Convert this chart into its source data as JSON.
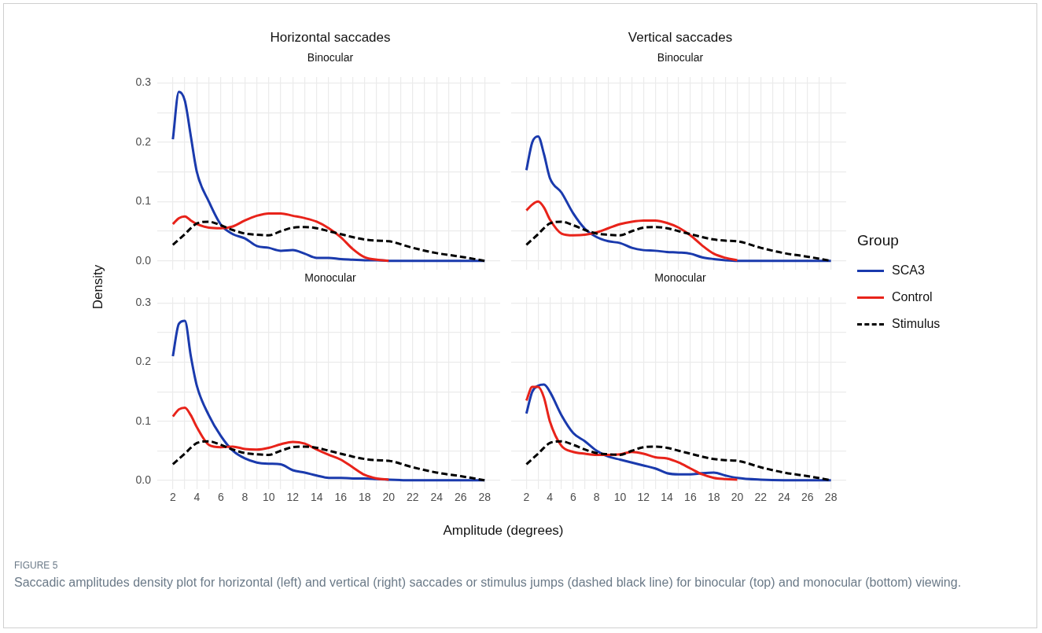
{
  "chart_data": [
    {
      "type": "line",
      "title": "Horizontal saccades",
      "subtitle": "Binocular",
      "ylabel": "Density",
      "x": [
        2,
        2.5,
        3,
        3.5,
        4,
        5,
        6,
        7,
        8,
        9,
        10,
        11,
        12,
        13,
        14,
        15,
        16,
        17,
        18,
        19,
        20,
        22,
        24,
        26,
        28
      ],
      "xlim": [
        0.7,
        29.3
      ],
      "ylim": [
        -0.015,
        0.31
      ],
      "xticks": [
        2,
        {
          "value": 3,
          "label": null
        },
        4,
        {
          "value": 5,
          "label": null
        },
        6,
        {
          "value": 7,
          "label": null
        },
        8,
        {
          "value": 9,
          "label": null
        },
        10,
        {
          "value": 11,
          "label": null
        },
        12,
        {
          "value": 13,
          "label": null
        },
        14,
        {
          "value": 15,
          "label": null
        },
        16,
        {
          "value": 17,
          "label": null
        },
        18,
        {
          "value": 19,
          "label": null
        },
        20,
        {
          "value": 21,
          "label": null
        },
        22,
        {
          "value": 23,
          "label": null
        },
        24,
        {
          "value": 25,
          "label": null
        },
        26,
        {
          "value": 27,
          "label": null
        },
        28
      ],
      "yticks": [
        {
          "value": 0,
          "label": "0.0"
        },
        {
          "value": 0.05,
          "label": null
        },
        {
          "value": 0.1,
          "label": "0.1"
        },
        {
          "value": 0.15,
          "label": null
        },
        {
          "value": 0.2,
          "label": "0.2"
        },
        {
          "value": 0.25,
          "label": null
        },
        {
          "value": 0.3,
          "label": "0.3"
        }
      ],
      "grid": true,
      "tick_labels": "y",
      "marker": "none",
      "series": [
        {
          "color": "#1a3aad",
          "line_style": "solid",
          "values": [
            0.205,
            0.285,
            0.27,
            0.21,
            0.15,
            0.1,
            0.061,
            0.045,
            0.038,
            0.025,
            0.022,
            0.017,
            0.018,
            0.012,
            0.005,
            0.005,
            0.003,
            0.002,
            0.001,
            0.001,
            0,
            0,
            0,
            0,
            0
          ]
        },
        {
          "color": "#e8231a",
          "line_style": "solid",
          "values": [
            0.062,
            0.072,
            0.075,
            0.068,
            0.062,
            0.056,
            0.055,
            0.058,
            0.068,
            0.076,
            0.08,
            0.08,
            0.076,
            0.072,
            0.066,
            0.055,
            0.04,
            0.02,
            0.006,
            0.002,
            0,
            null,
            null,
            null,
            null
          ]
        },
        {
          "color": "#000000",
          "line_style": "dashed",
          "values": [
            0.027,
            0.036,
            0.045,
            0.055,
            0.063,
            0.066,
            0.06,
            0.052,
            0.046,
            0.044,
            0.043,
            0.05,
            0.056,
            0.057,
            0.055,
            0.05,
            0.045,
            0.04,
            0.036,
            0.034,
            0.033,
            0.022,
            0.013,
            0.007,
            0
          ]
        }
      ]
    },
    {
      "type": "line",
      "title": "Vertical saccades",
      "subtitle": "Binocular",
      "legend_title": "Group",
      "legend": "right",
      "x": [
        2,
        2.5,
        3,
        3.5,
        4,
        5,
        6,
        7,
        8,
        9,
        10,
        11,
        12,
        13,
        14,
        15,
        16,
        17,
        18,
        19,
        20,
        22,
        24,
        26,
        28
      ],
      "xlim": [
        0.7,
        29.3
      ],
      "ylim": [
        -0.015,
        0.31
      ],
      "xticks": [
        2,
        3,
        4,
        5,
        6,
        7,
        8,
        9,
        10,
        11,
        12,
        13,
        14,
        15,
        16,
        17,
        18,
        19,
        20,
        21,
        22,
        23,
        24,
        25,
        26,
        27,
        28
      ],
      "yticks": [
        0,
        0.05,
        0.1,
        0.15,
        0.2,
        0.25,
        0.3
      ],
      "grid": true,
      "tick_labels": false,
      "marker": "none",
      "series": [
        {
          "name": "SCA3",
          "color": "#1a3aad",
          "line_style": "solid",
          "values": [
            0.153,
            0.2,
            0.21,
            0.18,
            0.14,
            0.115,
            0.08,
            0.054,
            0.04,
            0.033,
            0.03,
            0.022,
            0.018,
            0.017,
            0.015,
            0.014,
            0.012,
            0.006,
            0.003,
            0.001,
            0,
            0,
            0,
            0,
            0
          ]
        },
        {
          "name": "Control",
          "color": "#e8231a",
          "line_style": "solid",
          "values": [
            0.085,
            0.095,
            0.1,
            0.09,
            0.07,
            0.046,
            0.043,
            0.044,
            0.048,
            0.055,
            0.062,
            0.066,
            0.068,
            0.068,
            0.064,
            0.056,
            0.043,
            0.026,
            0.012,
            0.005,
            0.001,
            null,
            null,
            null,
            null
          ]
        },
        {
          "name": "Stimulus",
          "color": "#000000",
          "line_style": "dashed",
          "values": [
            0.027,
            0.036,
            0.045,
            0.055,
            0.063,
            0.066,
            0.06,
            0.052,
            0.046,
            0.044,
            0.043,
            0.05,
            0.056,
            0.057,
            0.055,
            0.05,
            0.045,
            0.04,
            0.036,
            0.034,
            0.033,
            0.022,
            0.013,
            0.007,
            0
          ]
        }
      ]
    },
    {
      "type": "line",
      "subtitle": "Monocular",
      "xlabel": "Amplitude (degrees)",
      "x": [
        2,
        2.5,
        3,
        3.5,
        4,
        5,
        6,
        7,
        8,
        9,
        10,
        11,
        12,
        13,
        14,
        15,
        16,
        17,
        18,
        19,
        20,
        22,
        24,
        26,
        28
      ],
      "xlim": [
        0.7,
        29.3
      ],
      "ylim": [
        -0.015,
        0.31
      ],
      "xticks": [
        2,
        {
          "value": 3,
          "label": null
        },
        4,
        {
          "value": 5,
          "label": null
        },
        6,
        {
          "value": 7,
          "label": null
        },
        8,
        {
          "value": 9,
          "label": null
        },
        10,
        {
          "value": 11,
          "label": null
        },
        12,
        {
          "value": 13,
          "label": null
        },
        14,
        {
          "value": 15,
          "label": null
        },
        16,
        {
          "value": 17,
          "label": null
        },
        18,
        {
          "value": 19,
          "label": null
        },
        20,
        {
          "value": 21,
          "label": null
        },
        22,
        {
          "value": 23,
          "label": null
        },
        24,
        {
          "value": 25,
          "label": null
        },
        26,
        {
          "value": 27,
          "label": null
        },
        28
      ],
      "yticks": [
        {
          "value": 0,
          "label": "0.0"
        },
        {
          "value": 0.05,
          "label": null
        },
        {
          "value": 0.1,
          "label": "0.1"
        },
        {
          "value": 0.15,
          "label": null
        },
        {
          "value": 0.2,
          "label": "0.2"
        },
        {
          "value": 0.25,
          "label": null
        },
        {
          "value": 0.3,
          "label": "0.3"
        }
      ],
      "grid": true,
      "marker": "none",
      "series": [
        {
          "color": "#1a3aad",
          "line_style": "solid",
          "values": [
            0.21,
            0.265,
            0.27,
            0.21,
            0.16,
            0.11,
            0.075,
            0.05,
            0.037,
            0.03,
            0.028,
            0.027,
            0.017,
            0.013,
            0.008,
            0.004,
            0.004,
            0.003,
            0.003,
            0.002,
            0.001,
            0,
            0,
            0,
            0
          ]
        },
        {
          "color": "#e8231a",
          "line_style": "solid",
          "values": [
            0.108,
            0.12,
            0.123,
            0.11,
            0.09,
            0.06,
            0.056,
            0.057,
            0.053,
            0.052,
            0.055,
            0.061,
            0.065,
            0.062,
            0.052,
            0.043,
            0.035,
            0.022,
            0.009,
            0.003,
            0.001,
            null,
            null,
            null,
            null
          ]
        },
        {
          "color": "#000000",
          "line_style": "dashed",
          "values": [
            0.027,
            0.036,
            0.045,
            0.055,
            0.063,
            0.066,
            0.06,
            0.052,
            0.046,
            0.044,
            0.043,
            0.05,
            0.056,
            0.057,
            0.055,
            0.05,
            0.045,
            0.04,
            0.036,
            0.034,
            0.033,
            0.022,
            0.013,
            0.007,
            0
          ]
        }
      ]
    },
    {
      "type": "line",
      "subtitle": "Monocular",
      "annotations": [
        "FIGURE 5",
        "Saccadic amplitudes density plot for horizontal (left) and vertical (right) saccades or stimulus jumps (dashed black line) for binocular (top) and monocular (bottom) viewing."
      ],
      "x": [
        2,
        2.5,
        3,
        3.5,
        4,
        5,
        6,
        7,
        8,
        9,
        10,
        11,
        12,
        13,
        14,
        15,
        16,
        17,
        18,
        19,
        20,
        22,
        24,
        26,
        28
      ],
      "xlim": [
        0.7,
        29.3
      ],
      "ylim": [
        -0.015,
        0.31
      ],
      "xticks": [
        2,
        {
          "value": 3,
          "label": null
        },
        4,
        {
          "value": 5,
          "label": null
        },
        6,
        {
          "value": 7,
          "label": null
        },
        8,
        {
          "value": 9,
          "label": null
        },
        10,
        {
          "value": 11,
          "label": null
        },
        12,
        {
          "value": 13,
          "label": null
        },
        14,
        {
          "value": 15,
          "label": null
        },
        16,
        {
          "value": 17,
          "label": null
        },
        18,
        {
          "value": 19,
          "label": null
        },
        20,
        {
          "value": 21,
          "label": null
        },
        22,
        {
          "value": 23,
          "label": null
        },
        24,
        {
          "value": 25,
          "label": null
        },
        26,
        {
          "value": 27,
          "label": null
        },
        28
      ],
      "yticks": [
        0,
        0.05,
        0.1,
        0.15,
        0.2,
        0.25,
        0.3
      ],
      "grid": true,
      "tick_labels": "x",
      "marker": "none",
      "series": [
        {
          "color": "#1a3aad",
          "line_style": "solid",
          "values": [
            0.113,
            0.15,
            0.16,
            0.162,
            0.15,
            0.11,
            0.08,
            0.066,
            0.05,
            0.04,
            0.035,
            0.03,
            0.025,
            0.02,
            0.012,
            0.01,
            0.01,
            0.012,
            0.013,
            0.008,
            0.004,
            0.001,
            0,
            0,
            0
          ]
        },
        {
          "color": "#e8231a",
          "line_style": "solid",
          "values": [
            0.135,
            0.158,
            0.158,
            0.14,
            0.1,
            0.058,
            0.048,
            0.045,
            0.043,
            0.043,
            0.044,
            0.048,
            0.045,
            0.039,
            0.037,
            0.03,
            0.02,
            0.01,
            0.004,
            0.002,
            0.001,
            null,
            null,
            null,
            null
          ]
        },
        {
          "color": "#000000",
          "line_style": "dashed",
          "values": [
            0.027,
            0.036,
            0.045,
            0.055,
            0.063,
            0.066,
            0.06,
            0.052,
            0.046,
            0.044,
            0.043,
            0.05,
            0.056,
            0.057,
            0.055,
            0.05,
            0.045,
            0.04,
            0.036,
            0.034,
            0.033,
            0.022,
            0.013,
            0.007,
            0
          ]
        }
      ]
    }
  ]
}
